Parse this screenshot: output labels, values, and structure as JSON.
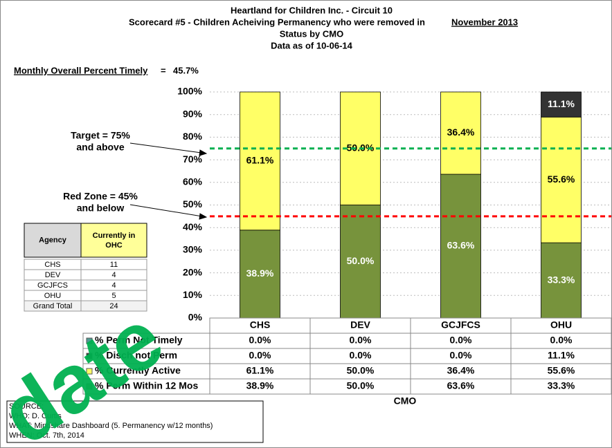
{
  "chart_data": {
    "type": "bar",
    "stacked": true,
    "title_lines": [
      "Heartland for Children Inc. - Circuit 10",
      "Scorecard #5 - Children Acheiving Permanency who were removed in",
      "Status by CMO",
      "Data as of 10-06-14"
    ],
    "title_month": "November 2013",
    "overall": {
      "label": "Monthly Overall Percent Timely",
      "sep": "=",
      "value": 45.7,
      "value_label": "45.7%"
    },
    "categories": [
      "CHS",
      "DEV",
      "GCJFCS",
      "OHU"
    ],
    "xlabel": "CMO",
    "series": [
      {
        "name": "% Perm Not Timely",
        "color": "#4f9a94",
        "label_color": "#ffffff",
        "values": [
          0,
          0,
          0,
          0
        ],
        "value_labels": [
          "0.0%",
          "0.0%",
          "0.0%",
          "0.0%"
        ]
      },
      {
        "name": "% Disch not Perm",
        "color": "#333333",
        "label_color": "#ffffff",
        "values": [
          0,
          0,
          0,
          11.1
        ],
        "value_labels": [
          "0.0%",
          "0.0%",
          "0.0%",
          "11.1%"
        ]
      },
      {
        "name": "% Currently Active",
        "color": "#ffff66",
        "label_color": "#000000",
        "values": [
          61.1,
          50.0,
          36.4,
          55.6
        ],
        "value_labels": [
          "61.1%",
          "50.0%",
          "36.4%",
          "55.6%"
        ]
      },
      {
        "name": "% Perm Within 12 Mos",
        "color": "#77933c",
        "label_color": "#ffffff",
        "values": [
          38.9,
          50.0,
          63.6,
          33.3
        ],
        "value_labels": [
          "38.9%",
          "50.0%",
          "63.6%",
          "33.3%"
        ]
      }
    ],
    "ylim": [
      0,
      100
    ],
    "yticks": [
      {
        "value": 0,
        "label": "0%"
      },
      {
        "value": 10,
        "label": "10%"
      },
      {
        "value": 20,
        "label": "20%"
      },
      {
        "value": 30,
        "label": "30%"
      },
      {
        "value": 40,
        "label": "40%"
      },
      {
        "value": 50,
        "label": "50%"
      },
      {
        "value": 60,
        "label": "60%"
      },
      {
        "value": 70,
        "label": "70%"
      },
      {
        "value": 80,
        "label": "80%"
      },
      {
        "value": 90,
        "label": "90%"
      },
      {
        "value": 100,
        "label": "100%"
      }
    ],
    "grid": true,
    "reference_lines": [
      {
        "value": 75,
        "color": "#00b050",
        "label_lines": [
          "Target = 75%",
          "and above"
        ]
      },
      {
        "value": 45,
        "color": "#ff0000",
        "label_lines": [
          "Red Zone = 45%",
          "and below"
        ]
      }
    ]
  },
  "agency_table": {
    "headers": [
      "Agency",
      "Currently in",
      "OHC"
    ],
    "rows": [
      [
        "CHS",
        "11"
      ],
      [
        "DEV",
        "4"
      ],
      [
        "GCJFCS",
        "4"
      ],
      [
        "OHU",
        "5"
      ],
      [
        "Grand Total",
        "24"
      ]
    ]
  },
  "source": [
    "SOURCE:",
    "WHO:  D. Curtis",
    "WHAT:  Mindshare Dashboard  (5. Permanency w/12 months)",
    "WHEN: Oct. 7th, 2014"
  ],
  "watermark": "date"
}
